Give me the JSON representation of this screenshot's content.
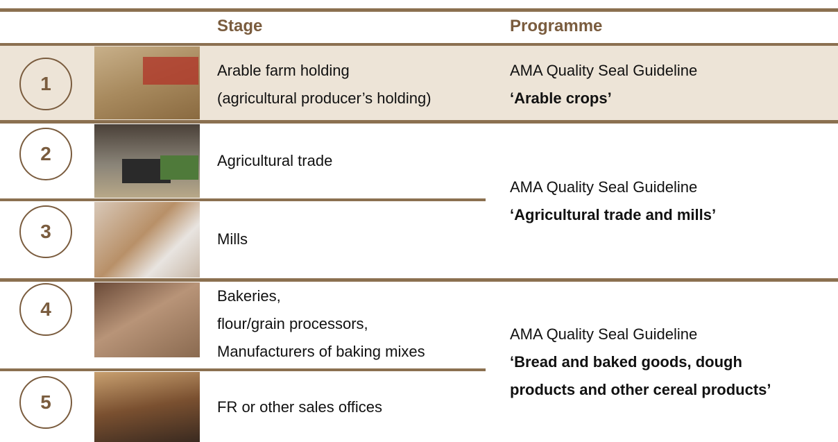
{
  "header": {
    "columns": [
      "Stage",
      "Programme"
    ]
  },
  "rows": [
    {
      "number": "1",
      "stage": [
        "Arable farm holding",
        "(agricultural producer’s holding)"
      ]
    },
    {
      "number": "2",
      "stage": [
        "Agricultural trade"
      ]
    },
    {
      "number": "3",
      "stage": [
        "Mills"
      ]
    },
    {
      "number": "4",
      "stage": [
        "Bakeries,",
        "flour/grain processors,",
        "Manufacturers of baking mixes"
      ]
    },
    {
      "number": "5",
      "stage": [
        "FR or other sales offices"
      ]
    }
  ],
  "programmes": [
    {
      "guideline": "AMA Quality Seal Guideline",
      "name": [
        "‘Arable crops’"
      ]
    },
    {
      "guideline": "AMA Quality Seal Guideline",
      "name": [
        "‘Agricultural trade and mills’"
      ]
    },
    {
      "guideline": "AMA Quality Seal Guideline",
      "name": [
        "‘Bread and baked goods, dough",
        "products and other cereal products’"
      ]
    }
  ]
}
